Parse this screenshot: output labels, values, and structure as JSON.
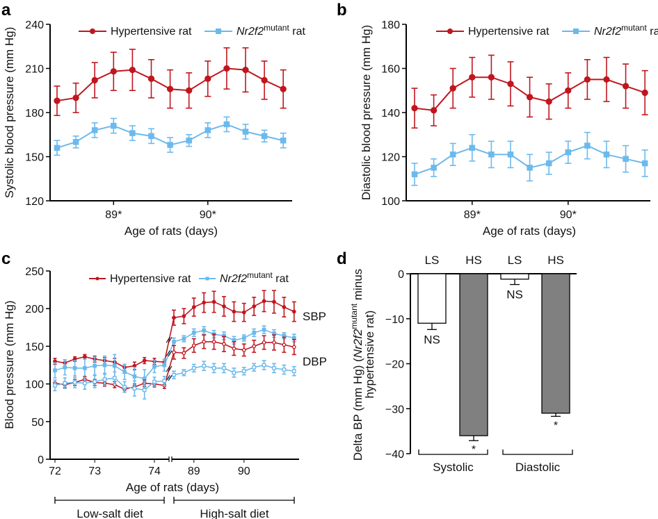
{
  "colors": {
    "hypertensive": "#c0161e",
    "mutant": "#6cb9ec",
    "hs_bar": "#808080",
    "ls_bar": "#ffffff"
  },
  "legend": {
    "hypertensive": "Hypertensive rat",
    "mutant_gene": "Nr2f2",
    "mutant_sup": "mutant",
    "mutant_suffix": " rat"
  },
  "chart_data": [
    {
      "panel": "a",
      "type": "line",
      "ylabel": "Systolic blood pressure (mm Hg)",
      "xlabel": "Age of rats (days)",
      "ylim": [
        120,
        240
      ],
      "yticks": [
        120,
        150,
        180,
        210,
        240
      ],
      "xticks": [
        {
          "label": "89*",
          "index": 3
        },
        {
          "label": "90*",
          "index": 8
        }
      ],
      "legend_position": "top",
      "series": {
        "hypertensive": {
          "values": [
            188,
            190,
            202,
            208,
            209,
            203,
            196,
            195,
            203,
            210,
            209,
            202,
            196
          ],
          "errors": [
            10,
            10,
            12,
            13,
            14,
            13,
            13,
            12,
            12,
            14,
            15,
            13,
            13
          ]
        },
        "mutant": {
          "values": [
            156,
            160,
            168,
            171,
            166,
            164,
            158,
            161,
            168,
            172,
            167,
            164,
            161
          ],
          "errors": [
            5,
            4,
            5,
            5,
            5,
            5,
            5,
            4,
            5,
            5,
            5,
            4,
            5
          ]
        }
      }
    },
    {
      "panel": "b",
      "type": "line",
      "ylabel": "Diastolic blood pressure (mm Hg)",
      "xlabel": "Age of rats (days)",
      "ylim": [
        100,
        180
      ],
      "yticks": [
        100,
        120,
        140,
        160,
        180
      ],
      "xticks": [
        {
          "label": "89*",
          "index": 3
        },
        {
          "label": "90*",
          "index": 8
        }
      ],
      "legend_position": "top",
      "series": {
        "hypertensive": {
          "values": [
            142,
            141,
            151,
            156,
            156,
            153,
            147,
            145,
            150,
            155,
            155,
            152,
            149
          ],
          "errors": [
            9,
            7,
            9,
            9,
            10,
            10,
            9,
            8,
            8,
            9,
            10,
            10,
            10
          ]
        },
        "mutant": {
          "values": [
            112,
            115,
            121,
            124,
            121,
            121,
            115,
            117,
            122,
            125,
            121,
            119,
            117
          ],
          "errors": [
            5,
            4,
            5,
            6,
            6,
            6,
            6,
            5,
            5,
            6,
            6,
            6,
            6
          ]
        }
      }
    },
    {
      "panel": "c",
      "type": "line",
      "ylabel": "Blood pressure (mm Hg)",
      "xlabel": "Age of rats (days)",
      "ylim": [
        0,
        250
      ],
      "yticks": [
        0,
        50,
        100,
        150,
        200,
        250
      ],
      "x_break": true,
      "low_salt": {
        "label": "Low-salt diet",
        "xticks": [
          {
            "label": "72",
            "index": 0
          },
          {
            "label": "73",
            "index": 4
          },
          {
            "label": "74",
            "index": 10
          }
        ],
        "hypertensive_sbp": {
          "values": [
            130,
            128,
            133,
            136,
            133,
            131,
            129,
            122,
            124,
            131,
            130,
            129
          ],
          "errors": [
            4,
            4,
            3,
            3,
            4,
            4,
            5,
            4,
            5,
            4,
            4,
            4
          ]
        },
        "mutant_sbp": {
          "values": [
            118,
            122,
            121,
            121,
            124,
            125,
            124,
            116,
            110,
            107,
            123,
            125
          ],
          "errors": [
            10,
            10,
            10,
            12,
            12,
            12,
            15,
            10,
            12,
            12,
            8,
            8
          ]
        },
        "hypertensive_dbp": {
          "values": [
            101,
            99,
            102,
            106,
            102,
            101,
            99,
            93,
            96,
            101,
            100,
            98
          ],
          "errors": [
            4,
            4,
            4,
            4,
            4,
            4,
            4,
            4,
            4,
            4,
            4,
            4
          ]
        },
        "mutant_dbp": {
          "values": [
            98,
            101,
            102,
            101,
            103,
            106,
            108,
            96,
            94,
            92,
            103,
            104
          ],
          "errors": [
            7,
            7,
            7,
            8,
            8,
            8,
            8,
            7,
            10,
            12,
            6,
            6
          ]
        }
      },
      "high_salt": {
        "label": "High-salt diet",
        "xticks": [
          {
            "label": "89",
            "index": 2
          },
          {
            "label": "90",
            "index": 7
          }
        ],
        "hypertensive_sbp": {
          "values": [
            188,
            190,
            202,
            208,
            209,
            203,
            196,
            195,
            203,
            210,
            209,
            202,
            196
          ],
          "errors": [
            10,
            10,
            12,
            13,
            14,
            13,
            13,
            12,
            12,
            14,
            15,
            13,
            13
          ]
        },
        "mutant_sbp": {
          "values": [
            156,
            160,
            168,
            171,
            166,
            164,
            158,
            161,
            168,
            172,
            167,
            164,
            161
          ],
          "errors": [
            5,
            4,
            5,
            5,
            5,
            5,
            5,
            4,
            5,
            5,
            5,
            4,
            5
          ]
        },
        "hypertensive_dbp": {
          "values": [
            142,
            141,
            151,
            156,
            156,
            153,
            147,
            145,
            150,
            155,
            155,
            152,
            149
          ],
          "errors": [
            9,
            7,
            9,
            9,
            10,
            10,
            9,
            8,
            8,
            9,
            10,
            10,
            10
          ]
        },
        "mutant_dbp": {
          "values": [
            112,
            115,
            121,
            124,
            121,
            121,
            115,
            117,
            122,
            125,
            121,
            119,
            117
          ],
          "errors": [
            5,
            4,
            5,
            6,
            6,
            6,
            6,
            5,
            5,
            6,
            6,
            6,
            6
          ]
        }
      },
      "annotations": {
        "sbp": "SBP",
        "dbp": "DBP"
      },
      "legend_position": "top"
    },
    {
      "panel": "d",
      "type": "bar",
      "ylabel_line1_pre": "Delta BP (mm Hg) (",
      "ylabel_line1_gene": "Nr2f2",
      "ylabel_line1_sup": "mutant",
      "ylabel_line1_post": " minus",
      "ylabel_line2": "hypertensive rat)",
      "ylim": [
        -40,
        0
      ],
      "yticks": [
        0,
        -10,
        -20,
        -30,
        -40
      ],
      "ytick_labels": [
        "0",
        "−10",
        "−20",
        "−30",
        "−40"
      ],
      "groups": [
        "Systolic",
        "Diastolic"
      ],
      "bars": [
        {
          "group": "Systolic",
          "label": "LS",
          "value": -11,
          "error": 1.4,
          "sig": "NS"
        },
        {
          "group": "Systolic",
          "label": "HS",
          "value": -36,
          "error": 1.1,
          "sig": "*"
        },
        {
          "group": "Diastolic",
          "label": "LS",
          "value": -1.2,
          "error": 1.2,
          "sig": "NS"
        },
        {
          "group": "Diastolic",
          "label": "HS",
          "value": -31,
          "error": 0.7,
          "sig": "*"
        }
      ]
    }
  ],
  "panel_labels": [
    "a",
    "b",
    "c",
    "d"
  ]
}
